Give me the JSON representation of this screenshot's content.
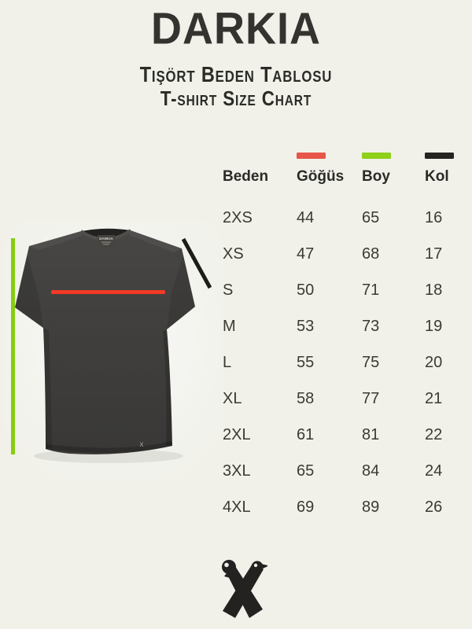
{
  "page": {
    "background": "#f1f1ea",
    "text_color": "#2e2e2a"
  },
  "header": {
    "brand": "DARKIA",
    "subtitle_tr": "Tişört Beden Tablosu",
    "subtitle_en": "T-shirt Size Chart"
  },
  "legend": {
    "chest_color": "#e8564a",
    "length_color": "#8ed01a",
    "sleeve_color": "#262420"
  },
  "shirt": {
    "neck_label": "DARKIA",
    "hem_mark": "x",
    "chest_line_color": "#f23a26",
    "length_line_color": "#86cd0f",
    "sleeve_line_color": "#1d1c19"
  },
  "footer": {
    "icon": "crossed-x-brand-logo"
  },
  "chart_data": {
    "type": "table",
    "title": "Tişört Beden Tablosu / T-shirt Size Chart",
    "columns": [
      "Beden",
      "Göğüs",
      "Boy",
      "Kol"
    ],
    "rows": [
      {
        "size": "2XS",
        "chest": 44,
        "length": 65,
        "sleeve": 16
      },
      {
        "size": "XS",
        "chest": 47,
        "length": 68,
        "sleeve": 17
      },
      {
        "size": "S",
        "chest": 50,
        "length": 71,
        "sleeve": 18
      },
      {
        "size": "M",
        "chest": 53,
        "length": 73,
        "sleeve": 19
      },
      {
        "size": "L",
        "chest": 55,
        "length": 75,
        "sleeve": 20
      },
      {
        "size": "XL",
        "chest": 58,
        "length": 77,
        "sleeve": 21
      },
      {
        "size": "2XL",
        "chest": 61,
        "length": 81,
        "sleeve": 22
      },
      {
        "size": "3XL",
        "chest": 65,
        "length": 84,
        "sleeve": 24
      },
      {
        "size": "4XL",
        "chest": 69,
        "length": 89,
        "sleeve": 26
      }
    ]
  }
}
